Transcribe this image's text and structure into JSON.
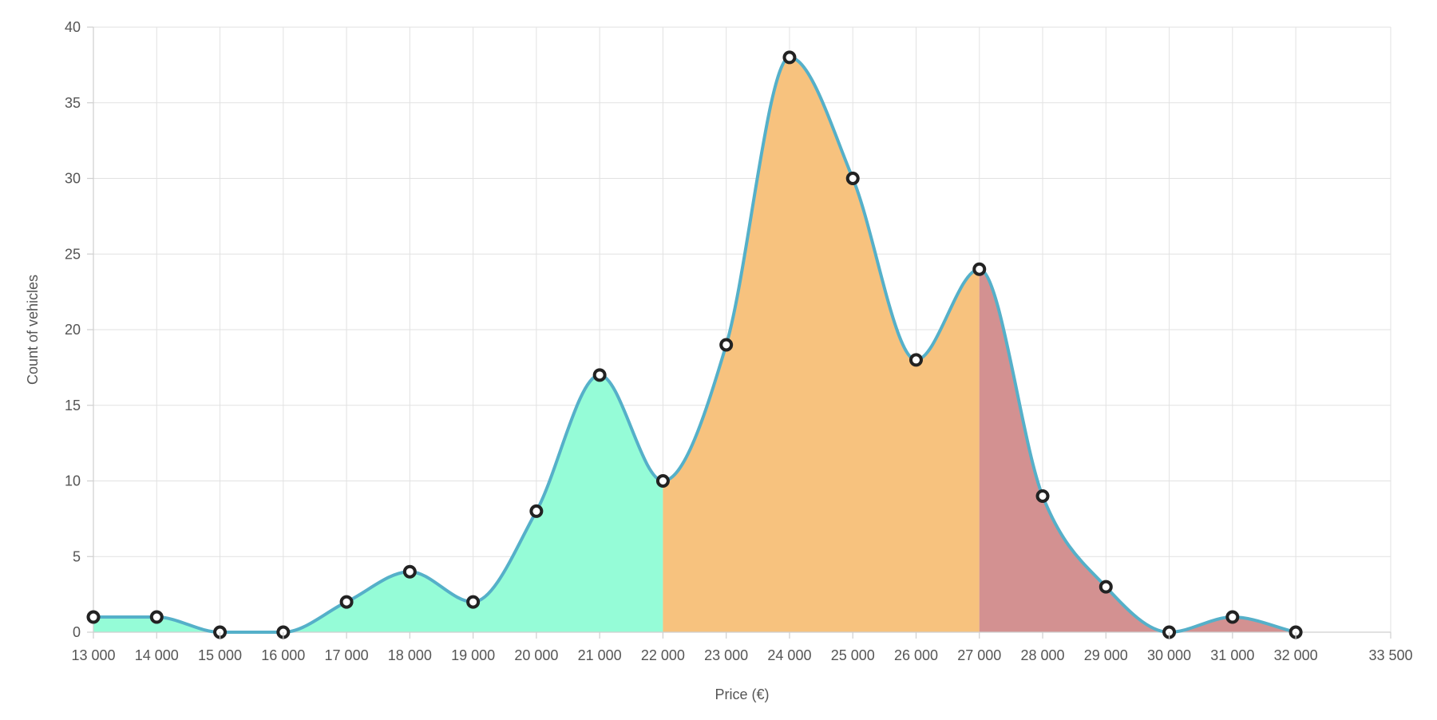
{
  "chart_data": {
    "type": "area",
    "xlabel": "Price (€)",
    "ylabel": "Count of vehicles",
    "xlim": [
      13000,
      33500
    ],
    "ylim": [
      0,
      40
    ],
    "x_ticks": [
      13000,
      14000,
      15000,
      16000,
      17000,
      18000,
      19000,
      20000,
      21000,
      22000,
      23000,
      24000,
      25000,
      26000,
      27000,
      28000,
      29000,
      30000,
      31000,
      32000,
      33500
    ],
    "x_tick_labels": [
      "13 000",
      "14 000",
      "15 000",
      "16 000",
      "17 000",
      "18 000",
      "19 000",
      "20 000",
      "21 000",
      "22 000",
      "23 000",
      "24 000",
      "25 000",
      "26 000",
      "27 000",
      "28 000",
      "29 000",
      "30 000",
      "31 000",
      "32 000",
      "33 500"
    ],
    "y_ticks": [
      0,
      5,
      10,
      15,
      20,
      25,
      30,
      35,
      40
    ],
    "y_tick_labels": [
      "0",
      "5",
      "10",
      "15",
      "20",
      "25",
      "30",
      "35",
      "40"
    ],
    "grid": true,
    "x": [
      13000,
      14000,
      15000,
      16000,
      17000,
      18000,
      19000,
      20000,
      21000,
      22000,
      23000,
      24000,
      25000,
      26000,
      27000,
      28000,
      29000,
      30000,
      31000,
      32000
    ],
    "values": [
      1,
      1,
      0,
      0,
      2,
      4,
      2,
      8,
      17,
      10,
      19,
      38,
      30,
      18,
      24,
      9,
      3,
      0,
      1,
      0
    ],
    "line_color": "#55b0c9",
    "regions": [
      {
        "from": 13000,
        "to": 22000,
        "color": "#95fcd7"
      },
      {
        "from": 22000,
        "to": 27000,
        "color": "#f7c27e"
      },
      {
        "from": 27000,
        "to": 32000,
        "color": "#d39191"
      }
    ]
  }
}
